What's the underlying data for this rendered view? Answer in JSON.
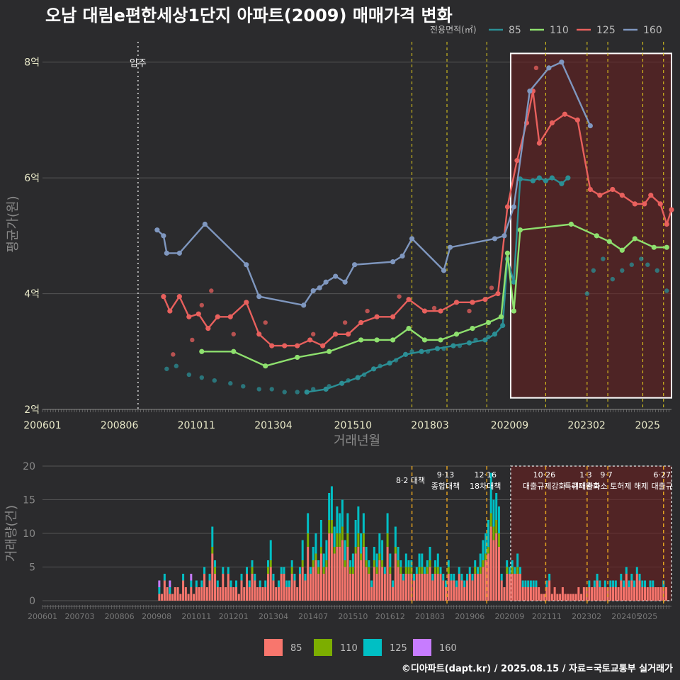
{
  "title": "오남 대림e편한세상1단지 아파트(2009) 매매가격 변화",
  "footer": "©디아파트(dapt.kr) / 2025.08.15 / 자료=국토교통부 실거래가",
  "colors": {
    "background": "#2b2b2d",
    "grid": "#555555",
    "s85": "#2b8f95",
    "s110": "#8ee06e",
    "s125": "#e8605d",
    "s160": "#7f97bf",
    "vol85": "#f8766d",
    "vol110": "#7cae00",
    "vol125": "#00bfc4",
    "vol160": "#c77cff",
    "policy_line": "#e8d21c",
    "highlight_fill": "#6b1f1f"
  },
  "chart_data": [
    {
      "type": "line",
      "title": "오남 대림e편한세상1단지 아파트(2009) 매매가격 변화",
      "xlabel": "거래년월",
      "ylabel": "평균가(원)",
      "legend_title": "전용면적(㎡)",
      "legend_position": "top-right",
      "x_ticks": [
        "200601",
        "200806",
        "201011",
        "201304",
        "201510",
        "201803",
        "202009",
        "202302",
        "2025"
      ],
      "y_ticks": [
        {
          "value": 2,
          "label": "2억"
        },
        {
          "value": 4,
          "label": "4억"
        },
        {
          "value": 6,
          "label": "6억"
        },
        {
          "value": 8,
          "label": "8억"
        }
      ],
      "xlim": [
        2006.0,
        2025.75
      ],
      "ylim": [
        2.0,
        8.4
      ],
      "annotation": {
        "label": "입주",
        "x": 2009.0
      },
      "policy_dates": [
        2017.6,
        2018.7,
        2019.95,
        2021.8,
        2023.1,
        2023.75,
        2024.85,
        2025.5
      ],
      "highlight": {
        "x": [
          2020.7,
          2025.75
        ],
        "y": [
          2.2,
          8.15
        ]
      },
      "series": [
        {
          "name": "85",
          "color": "#2b8f95",
          "points": [
            [
              2014.3,
              2.3
            ],
            [
              2014.9,
              2.35
            ],
            [
              2015.4,
              2.45
            ],
            [
              2015.9,
              2.55
            ],
            [
              2016.4,
              2.7
            ],
            [
              2016.9,
              2.8
            ],
            [
              2017.4,
              2.95
            ],
            [
              2017.9,
              3.0
            ],
            [
              2018.4,
              3.05
            ],
            [
              2018.9,
              3.1
            ],
            [
              2019.4,
              3.15
            ],
            [
              2019.9,
              3.2
            ],
            [
              2020.2,
              3.3
            ],
            [
              2020.45,
              3.45
            ],
            [
              2020.6,
              4.6
            ],
            [
              2020.8,
              4.2
            ],
            [
              2021.0,
              5.98
            ],
            [
              2021.4,
              5.95
            ],
            [
              2021.6,
              6.0
            ],
            [
              2021.8,
              5.95
            ],
            [
              2022.0,
              6.0
            ],
            [
              2022.3,
              5.9
            ],
            [
              2022.5,
              6.0
            ]
          ],
          "scatter": [
            [
              2009.9,
              2.7
            ],
            [
              2010.2,
              2.75
            ],
            [
              2010.6,
              2.6
            ],
            [
              2011.0,
              2.55
            ],
            [
              2011.4,
              2.5
            ],
            [
              2011.9,
              2.45
            ],
            [
              2012.3,
              2.4
            ],
            [
              2012.8,
              2.35
            ],
            [
              2013.2,
              2.35
            ],
            [
              2013.6,
              2.3
            ],
            [
              2014.0,
              2.3
            ],
            [
              2014.5,
              2.35
            ],
            [
              2015.0,
              2.4
            ],
            [
              2015.6,
              2.5
            ],
            [
              2016.1,
              2.6
            ],
            [
              2016.6,
              2.75
            ],
            [
              2017.1,
              2.85
            ],
            [
              2017.6,
              3.0
            ],
            [
              2018.1,
              3.0
            ],
            [
              2018.6,
              3.05
            ],
            [
              2019.1,
              3.1
            ],
            [
              2019.6,
              3.2
            ],
            [
              2020.0,
              3.25
            ],
            [
              2023.1,
              4.0
            ],
            [
              2023.3,
              4.4
            ],
            [
              2023.6,
              4.6
            ],
            [
              2023.9,
              4.25
            ],
            [
              2024.2,
              4.4
            ],
            [
              2024.5,
              4.5
            ],
            [
              2024.8,
              4.6
            ],
            [
              2025.0,
              4.5
            ],
            [
              2025.3,
              4.4
            ],
            [
              2025.6,
              4.05
            ]
          ]
        },
        {
          "name": "110",
          "color": "#8ee06e",
          "points": [
            [
              2011.0,
              3.0
            ],
            [
              2012.0,
              3.0
            ],
            [
              2013.0,
              2.75
            ],
            [
              2014.0,
              2.9
            ],
            [
              2015.0,
              3.0
            ],
            [
              2016.0,
              3.2
            ],
            [
              2016.5,
              3.2
            ],
            [
              2017.0,
              3.2
            ],
            [
              2017.5,
              3.4
            ],
            [
              2018.0,
              3.2
            ],
            [
              2018.5,
              3.2
            ],
            [
              2019.0,
              3.3
            ],
            [
              2019.5,
              3.4
            ],
            [
              2020.0,
              3.5
            ],
            [
              2020.4,
              3.6
            ],
            [
              2020.6,
              4.7
            ],
            [
              2020.8,
              3.7
            ],
            [
              2021.0,
              5.1
            ],
            [
              2022.6,
              5.2
            ],
            [
              2023.4,
              5.0
            ],
            [
              2023.8,
              4.9
            ],
            [
              2024.2,
              4.75
            ],
            [
              2024.6,
              4.95
            ],
            [
              2025.2,
              4.8
            ],
            [
              2025.6,
              4.8
            ]
          ]
        },
        {
          "name": "125",
          "color": "#e8605d",
          "points": [
            [
              2009.8,
              3.95
            ],
            [
              2010.0,
              3.7
            ],
            [
              2010.3,
              3.95
            ],
            [
              2010.6,
              3.6
            ],
            [
              2010.9,
              3.65
            ],
            [
              2011.2,
              3.4
            ],
            [
              2011.5,
              3.6
            ],
            [
              2011.9,
              3.6
            ],
            [
              2012.4,
              3.85
            ],
            [
              2012.8,
              3.3
            ],
            [
              2013.2,
              3.1
            ],
            [
              2013.6,
              3.1
            ],
            [
              2014.0,
              3.1
            ],
            [
              2014.4,
              3.2
            ],
            [
              2014.8,
              3.1
            ],
            [
              2015.2,
              3.3
            ],
            [
              2015.6,
              3.3
            ],
            [
              2016.0,
              3.5
            ],
            [
              2016.5,
              3.6
            ],
            [
              2017.0,
              3.6
            ],
            [
              2017.5,
              3.9
            ],
            [
              2018.0,
              3.7
            ],
            [
              2018.5,
              3.7
            ],
            [
              2019.0,
              3.85
            ],
            [
              2019.5,
              3.85
            ],
            [
              2019.9,
              3.9
            ],
            [
              2020.3,
              4.0
            ],
            [
              2020.6,
              5.5
            ],
            [
              2020.9,
              6.3
            ],
            [
              2021.2,
              6.95
            ],
            [
              2021.4,
              7.5
            ],
            [
              2021.6,
              6.6
            ],
            [
              2022.0,
              6.95
            ],
            [
              2022.4,
              7.1
            ],
            [
              2022.8,
              7.0
            ],
            [
              2023.2,
              5.8
            ],
            [
              2023.5,
              5.7
            ],
            [
              2023.9,
              5.8
            ],
            [
              2024.2,
              5.7
            ],
            [
              2024.6,
              5.55
            ],
            [
              2024.9,
              5.55
            ],
            [
              2025.1,
              5.7
            ],
            [
              2025.4,
              5.55
            ],
            [
              2025.6,
              5.2
            ],
            [
              2025.75,
              5.45
            ]
          ],
          "scatter": [
            [
              2010.1,
              2.95
            ],
            [
              2010.7,
              3.2
            ],
            [
              2011.0,
              3.8
            ],
            [
              2011.3,
              4.05
            ],
            [
              2012.0,
              3.3
            ],
            [
              2013.0,
              3.5
            ],
            [
              2014.5,
              3.3
            ],
            [
              2015.5,
              3.5
            ],
            [
              2016.2,
              3.7
            ],
            [
              2017.2,
              3.95
            ],
            [
              2018.3,
              3.75
            ],
            [
              2019.4,
              3.7
            ],
            [
              2020.1,
              4.1
            ],
            [
              2021.5,
              7.9
            ]
          ]
        },
        {
          "name": "160",
          "color": "#7f97bf",
          "points": [
            [
              2009.6,
              5.1
            ],
            [
              2009.8,
              5.0
            ],
            [
              2009.9,
              4.7
            ],
            [
              2010.3,
              4.7
            ],
            [
              2011.1,
              5.2
            ],
            [
              2012.4,
              4.5
            ],
            [
              2012.8,
              3.95
            ],
            [
              2014.2,
              3.8
            ],
            [
              2014.5,
              4.05
            ],
            [
              2014.7,
              4.1
            ],
            [
              2014.9,
              4.2
            ],
            [
              2015.2,
              4.3
            ],
            [
              2015.5,
              4.2
            ],
            [
              2015.8,
              4.5
            ],
            [
              2017.0,
              4.55
            ],
            [
              2017.3,
              4.65
            ],
            [
              2017.6,
              4.95
            ],
            [
              2018.6,
              4.4
            ],
            [
              2018.8,
              4.8
            ],
            [
              2020.2,
              4.95
            ],
            [
              2020.5,
              5.0
            ],
            [
              2020.8,
              5.5
            ],
            [
              2021.3,
              7.5
            ],
            [
              2021.9,
              7.9
            ],
            [
              2022.3,
              8.0
            ],
            [
              2023.2,
              6.9
            ]
          ]
        }
      ]
    },
    {
      "type": "bar",
      "ylabel": "거래량(건)",
      "ylim": [
        0,
        20
      ],
      "y_ticks": [
        0,
        5,
        10,
        15,
        20
      ],
      "x_ticks": [
        "200601",
        "200703",
        "200806",
        "200908",
        "201011",
        "201201",
        "201304",
        "201407",
        "201510",
        "201612",
        "201803",
        "201906",
        "202009",
        "202111",
        "202302",
        "202405",
        "2025"
      ],
      "xlim": [
        2006.0,
        2025.75
      ],
      "legend_position": "bottom",
      "categories": [
        "85",
        "110",
        "125",
        "160"
      ],
      "policy_labels": [
        {
          "x": 2017.6,
          "lines": [
            "8·2 대책"
          ]
        },
        {
          "x": 2018.7,
          "lines": [
            "9·13",
            "종합대책"
          ]
        },
        {
          "x": 2019.95,
          "lines": [
            "12·16",
            "18차대책"
          ]
        },
        {
          "x": 2021.8,
          "lines": [
            "10·26",
            "대출규제강화"
          ]
        },
        {
          "x": 2023.1,
          "lines": [
            "1·3",
            "규제완화"
          ]
        },
        {
          "x": 2023.75,
          "lines": [
            "9·7",
            "특례대출축소 토허제 해제"
          ]
        },
        {
          "x": 2025.5,
          "lines": [
            "6·27",
            "대출규"
          ]
        }
      ],
      "highlight": {
        "x": [
          2020.7,
          2025.75
        ],
        "y": [
          0,
          20
        ]
      },
      "monthly_totals": {
        "2009": [
          0,
          0,
          0,
          0,
          0,
          0,
          0,
          0,
          3,
          1,
          4,
          2
        ],
        "2010": [
          3,
          1,
          2,
          2,
          1,
          4,
          2,
          1,
          4,
          1,
          3,
          2
        ],
        "2011": [
          3,
          5,
          2,
          4,
          11,
          6,
          3,
          2,
          5,
          2,
          5,
          3
        ],
        "2012": [
          2,
          3,
          1,
          4,
          2,
          5,
          3,
          6,
          4,
          2,
          3,
          2
        ],
        "2013": [
          3,
          6,
          9,
          4,
          2,
          3,
          5,
          5,
          3,
          3,
          6,
          4
        ],
        "2014": [
          2,
          5,
          9,
          4,
          13,
          5,
          8,
          10,
          6,
          12,
          7,
          9
        ],
        "2015": [
          16,
          17,
          11,
          14,
          13,
          15,
          9,
          13,
          6,
          7,
          12,
          14
        ],
        "2016": [
          10,
          13,
          8,
          6,
          3,
          8,
          7,
          10,
          9,
          5,
          13,
          7
        ],
        "2017": [
          3,
          11,
          8,
          6,
          4,
          7,
          6,
          6,
          4,
          5,
          7,
          7
        ],
        "2018": [
          5,
          6,
          8,
          4,
          6,
          7,
          5,
          4,
          3,
          6,
          4,
          4
        ],
        "2019": [
          3,
          5,
          4,
          3,
          4,
          5,
          4,
          6,
          5,
          7,
          9,
          10
        ],
        "2020": [
          12,
          19,
          15,
          16,
          14,
          4,
          2,
          6,
          5,
          6,
          5,
          7
        ],
        "2021": [
          5,
          3,
          3,
          3,
          3,
          3,
          3,
          2,
          1,
          1,
          3,
          4
        ],
        "2022": [
          1,
          2,
          1,
          1,
          2,
          1,
          1,
          1,
          1,
          1,
          2,
          1
        ],
        "2023": [
          2,
          2,
          3,
          2,
          3,
          4,
          3,
          2,
          3,
          2,
          3,
          3
        ],
        "2024": [
          3,
          2,
          4,
          3,
          5,
          3,
          4,
          3,
          5,
          4,
          3,
          3
        ],
        "2025": [
          2,
          3,
          3,
          2,
          2,
          2,
          3,
          2
        ]
      }
    }
  ]
}
